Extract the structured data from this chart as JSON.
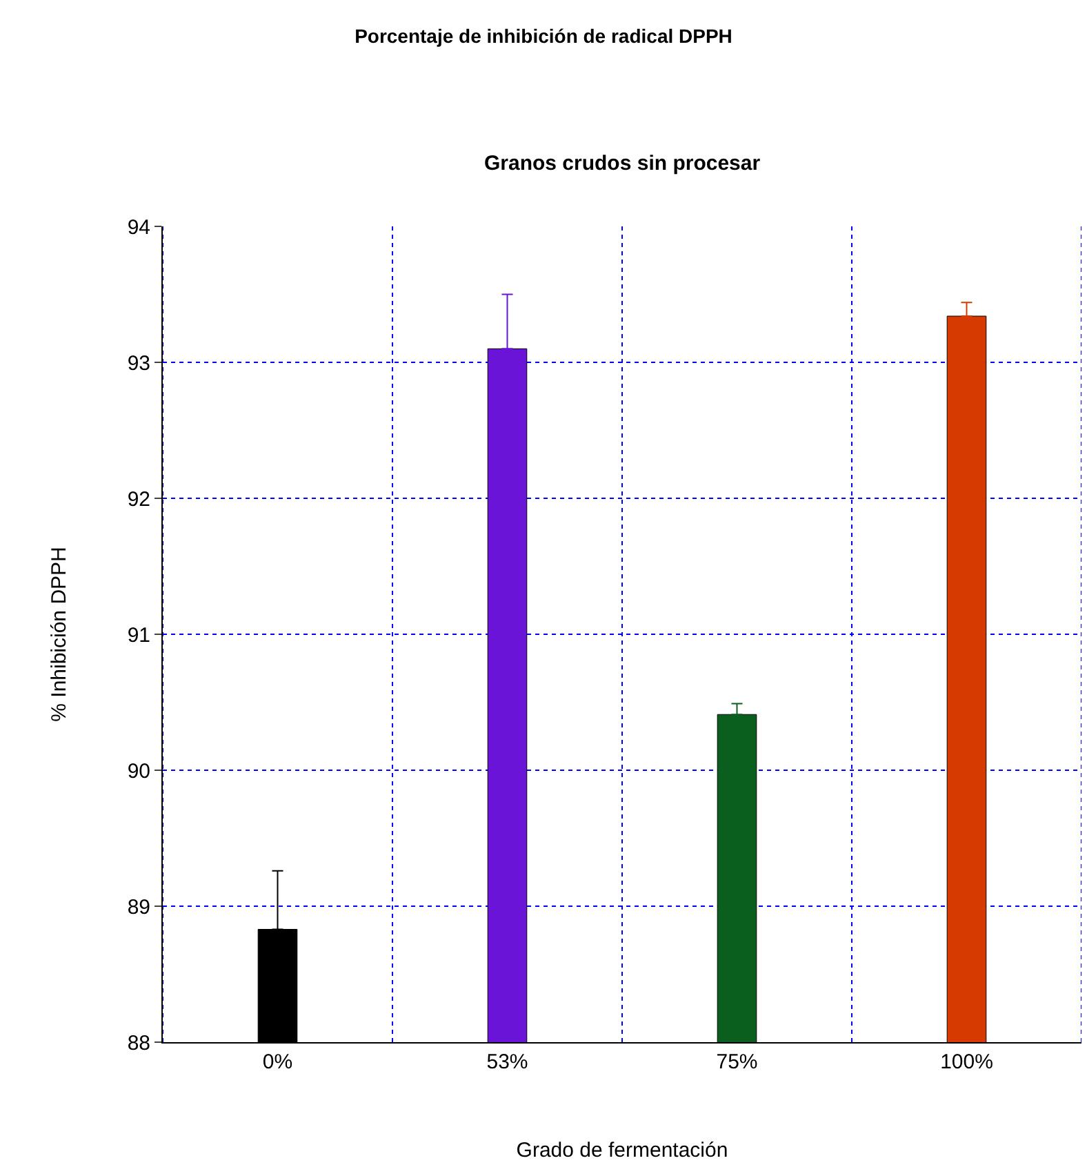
{
  "chart_data": {
    "type": "bar",
    "title": "Porcentaje de inhibición de radical DPPH",
    "subtitle": "Granos crudos sin procesar",
    "xlabel": "Grado de fermentación",
    "ylabel": "% Inhibición DPPH",
    "categories": [
      "0%",
      "53%",
      "75%",
      "100%"
    ],
    "values": [
      88.83,
      93.1,
      90.41,
      93.34
    ],
    "errors": [
      [
        88.83,
        89.26
      ],
      [
        93.1,
        93.5
      ],
      [
        90.41,
        90.49
      ],
      [
        93.34,
        93.44
      ]
    ],
    "colors": [
      "#000000",
      "#6a14d8",
      "#0a5e1e",
      "#d63a00"
    ],
    "ylim": [
      88,
      94
    ],
    "yticks": [
      88,
      89,
      90,
      91,
      92,
      93,
      94
    ],
    "grid": true
  }
}
